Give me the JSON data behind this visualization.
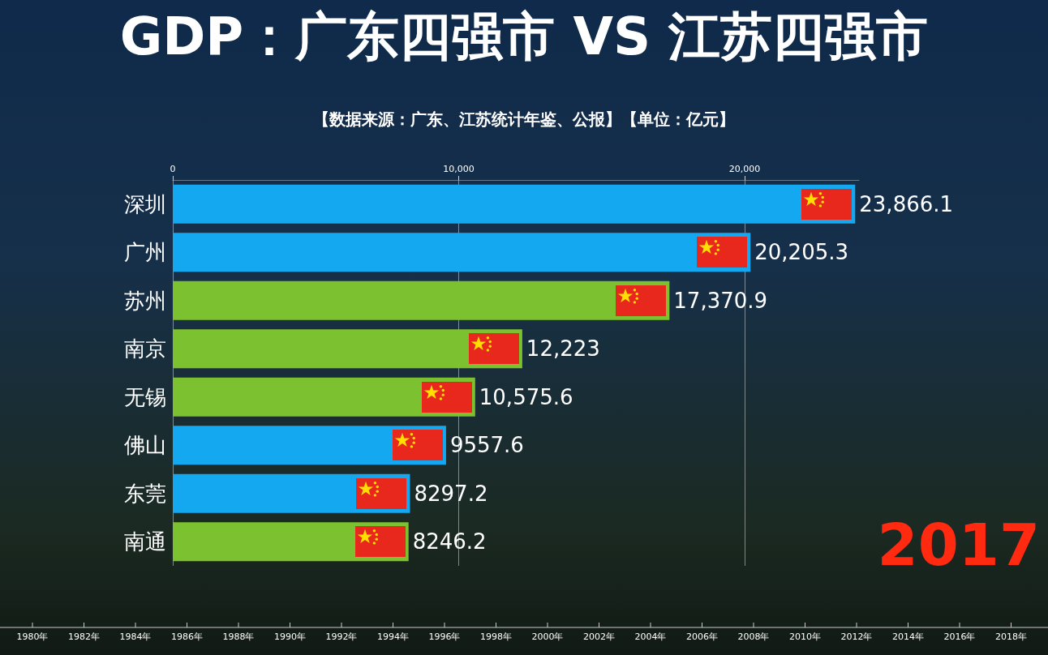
{
  "chart_data": {
    "type": "bar",
    "orientation": "horizontal",
    "title": "GDP：广东四强市 VS 江苏四强市",
    "subtitle": "【数据来源：广东、江苏统计年鉴、公报】【单位：亿元】",
    "categories": [
      "深圳",
      "广州",
      "苏州",
      "南京",
      "无锡",
      "佛山",
      "东莞",
      "南通"
    ],
    "values": [
      23866.1,
      20205.3,
      17370.9,
      12223,
      10575.6,
      9557.6,
      8297.2,
      8246.2
    ],
    "colors": [
      "#14a8f0",
      "#14a8f0",
      "#7cc12f",
      "#7cc12f",
      "#7cc12f",
      "#14a8f0",
      "#14a8f0",
      "#7cc12f"
    ],
    "value_labels": [
      "23,866.1",
      "20,205.3",
      "17,370.9",
      "12,223",
      "10,575.6",
      "9557.6",
      "8297.2",
      "8246.2"
    ],
    "xlim": [
      0,
      24000
    ],
    "xticks": [
      0,
      {
        "value": 10000,
        "label": "10,000"
      },
      {
        "value": 20000,
        "label": "20,000"
      }
    ],
    "grid": "x",
    "annotations": [
      "2017",
      "1980年",
      "1982年",
      "1984年",
      "1986年",
      "1988年",
      "1990年",
      "1992年",
      "1994年",
      "1996年",
      "1998年",
      "2000年",
      "2002年",
      "2004年",
      "2006年",
      "2008年",
      "2010年",
      "2012年",
      "2014年",
      "2016年",
      "2018年"
    ]
  }
}
